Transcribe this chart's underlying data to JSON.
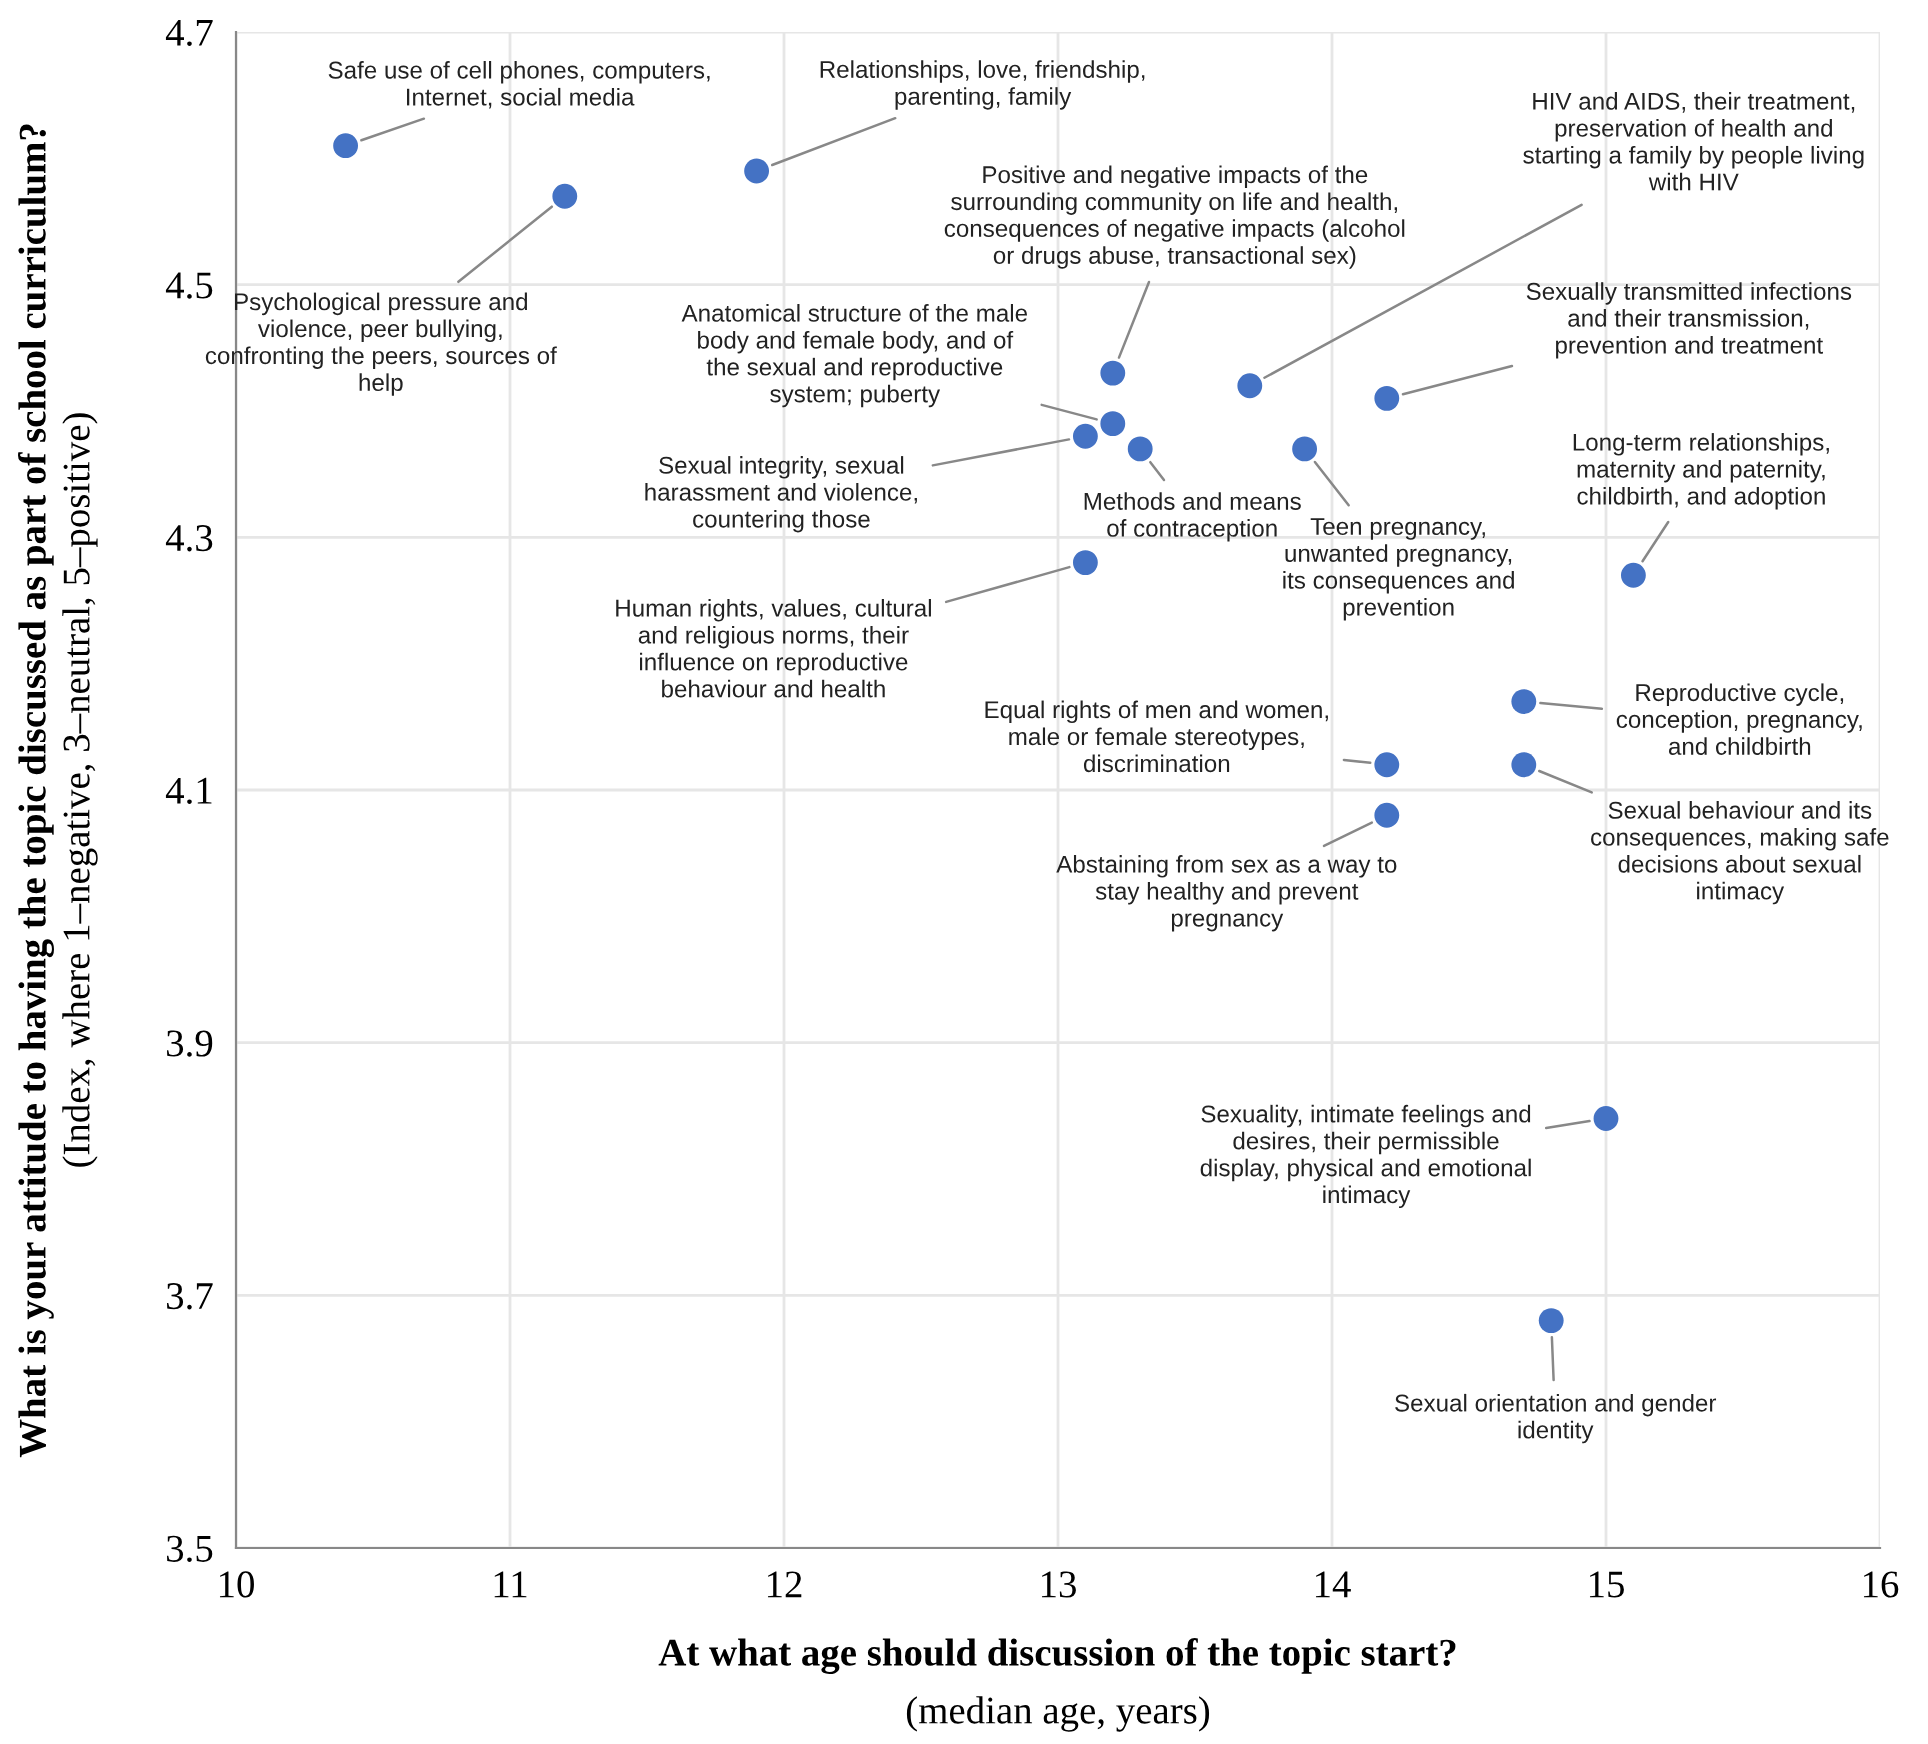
{
  "chart_data": {
    "type": "scatter",
    "xlabel": "At what age should discussion of the topic start?\n(median age, years)",
    "ylabel": "What is your attitude to having the topic discussed as part of school curriculum?\n(Index, where 1–negative, 3–neutral, 5–positive)",
    "x": [
      10.4,
      11.2,
      11.9,
      13.2,
      13.7,
      14.2,
      13.2,
      13.1,
      13.3,
      13.9,
      15.1,
      13.1,
      14.7,
      14.2,
      14.7,
      14.2,
      15.0,
      14.8
    ],
    "series": [
      {
        "color": "#4472c4",
        "values": [
          4.61,
          4.57,
          4.59,
          4.43,
          4.42,
          4.41,
          4.39,
          4.38,
          4.37,
          4.37,
          4.27,
          4.28,
          4.17,
          4.12,
          4.12,
          4.08,
          3.84,
          3.68
        ]
      }
    ],
    "marker": "circle",
    "xlim": [
      10,
      16
    ],
    "xticks": [
      10,
      11,
      12,
      13,
      14,
      15,
      16
    ],
    "ylim": [
      3.5,
      4.7
    ],
    "yticks": [
      {
        "value": 3.5,
        "label": "3.5"
      },
      {
        "value": 3.7,
        "label": "3.7"
      },
      {
        "value": 3.9,
        "label": "3.9"
      },
      {
        "value": 4.1,
        "label": "4.1"
      },
      {
        "value": 4.3,
        "label": "4.3"
      },
      {
        "value": 4.5,
        "label": "4.5"
      },
      {
        "value": 4.7,
        "label": "4.7"
      }
    ],
    "grid": true,
    "annotations": [
      {
        "text": "Safe use of cell phones, computers,\nInternet, social media",
        "x": 10.4,
        "y": 4.61
      },
      {
        "text": "Psychological pressure and\nviolence, peer bullying,\nconfronting the peers, sources of\nhelp",
        "x": 11.2,
        "y": 4.57
      },
      {
        "text": "Relationships, love, friendship,\nparenting, family",
        "x": 11.9,
        "y": 4.59
      },
      {
        "text": "Positive and negative impacts of the\nsurrounding community on life and health,\nconsequences of negative impacts (alcohol\nor drugs abuse, transactional sex)",
        "x": 13.2,
        "y": 4.43
      },
      {
        "text": "HIV and AIDS, their treatment,\npreservation of health and\nstarting a family by people living\nwith HIV",
        "x": 13.7,
        "y": 4.42
      },
      {
        "text": "Sexually transmitted infections\nand their transmission,\nprevention and treatment",
        "x": 14.2,
        "y": 4.41
      },
      {
        "text": "Anatomical structure of the male\nbody and female body, and of\nthe sexual and reproductive\nsystem; puberty",
        "x": 13.2,
        "y": 4.39
      },
      {
        "text": "Sexual integrity, sexual\nharassment and violence,\ncountering those",
        "x": 13.1,
        "y": 4.38
      },
      {
        "text": "Methods and means\nof contraception",
        "x": 13.3,
        "y": 4.37
      },
      {
        "text": "Teen pregnancy,\nunwanted pregnancy,\nits consequences and\nprevention",
        "x": 13.9,
        "y": 4.37
      },
      {
        "text": "Long-term relationships,\nmaternity and paternity,\nchildbirth, and adoption",
        "x": 15.1,
        "y": 4.27
      },
      {
        "text": "Human rights, values, cultural\nand religious norms, their\ninfluence on reproductive\nbehaviour and health",
        "x": 13.1,
        "y": 4.28
      },
      {
        "text": "Reproductive cycle,\nconception, pregnancy,\nand childbirth",
        "x": 14.7,
        "y": 4.17
      },
      {
        "text": "Equal rights of men and women,\nmale or female stereotypes,\ndiscrimination",
        "x": 14.2,
        "y": 4.12
      },
      {
        "text": "Sexual behaviour and its\nconsequences, making safe\ndecisions about sexual\nintimacy",
        "x": 14.7,
        "y": 4.12
      },
      {
        "text": "Abstaining from sex as a way to\nstay healthy and prevent\npregnancy",
        "x": 14.2,
        "y": 4.08
      },
      {
        "text": "Sexuality, intimate feelings and\ndesires, their permissible\ndisplay, physical and emotional\nintimacy",
        "x": 15.0,
        "y": 3.84
      },
      {
        "text": "Sexual orientation and gender\nidentity",
        "x": 14.8,
        "y": 3.68
      }
    ]
  }
}
